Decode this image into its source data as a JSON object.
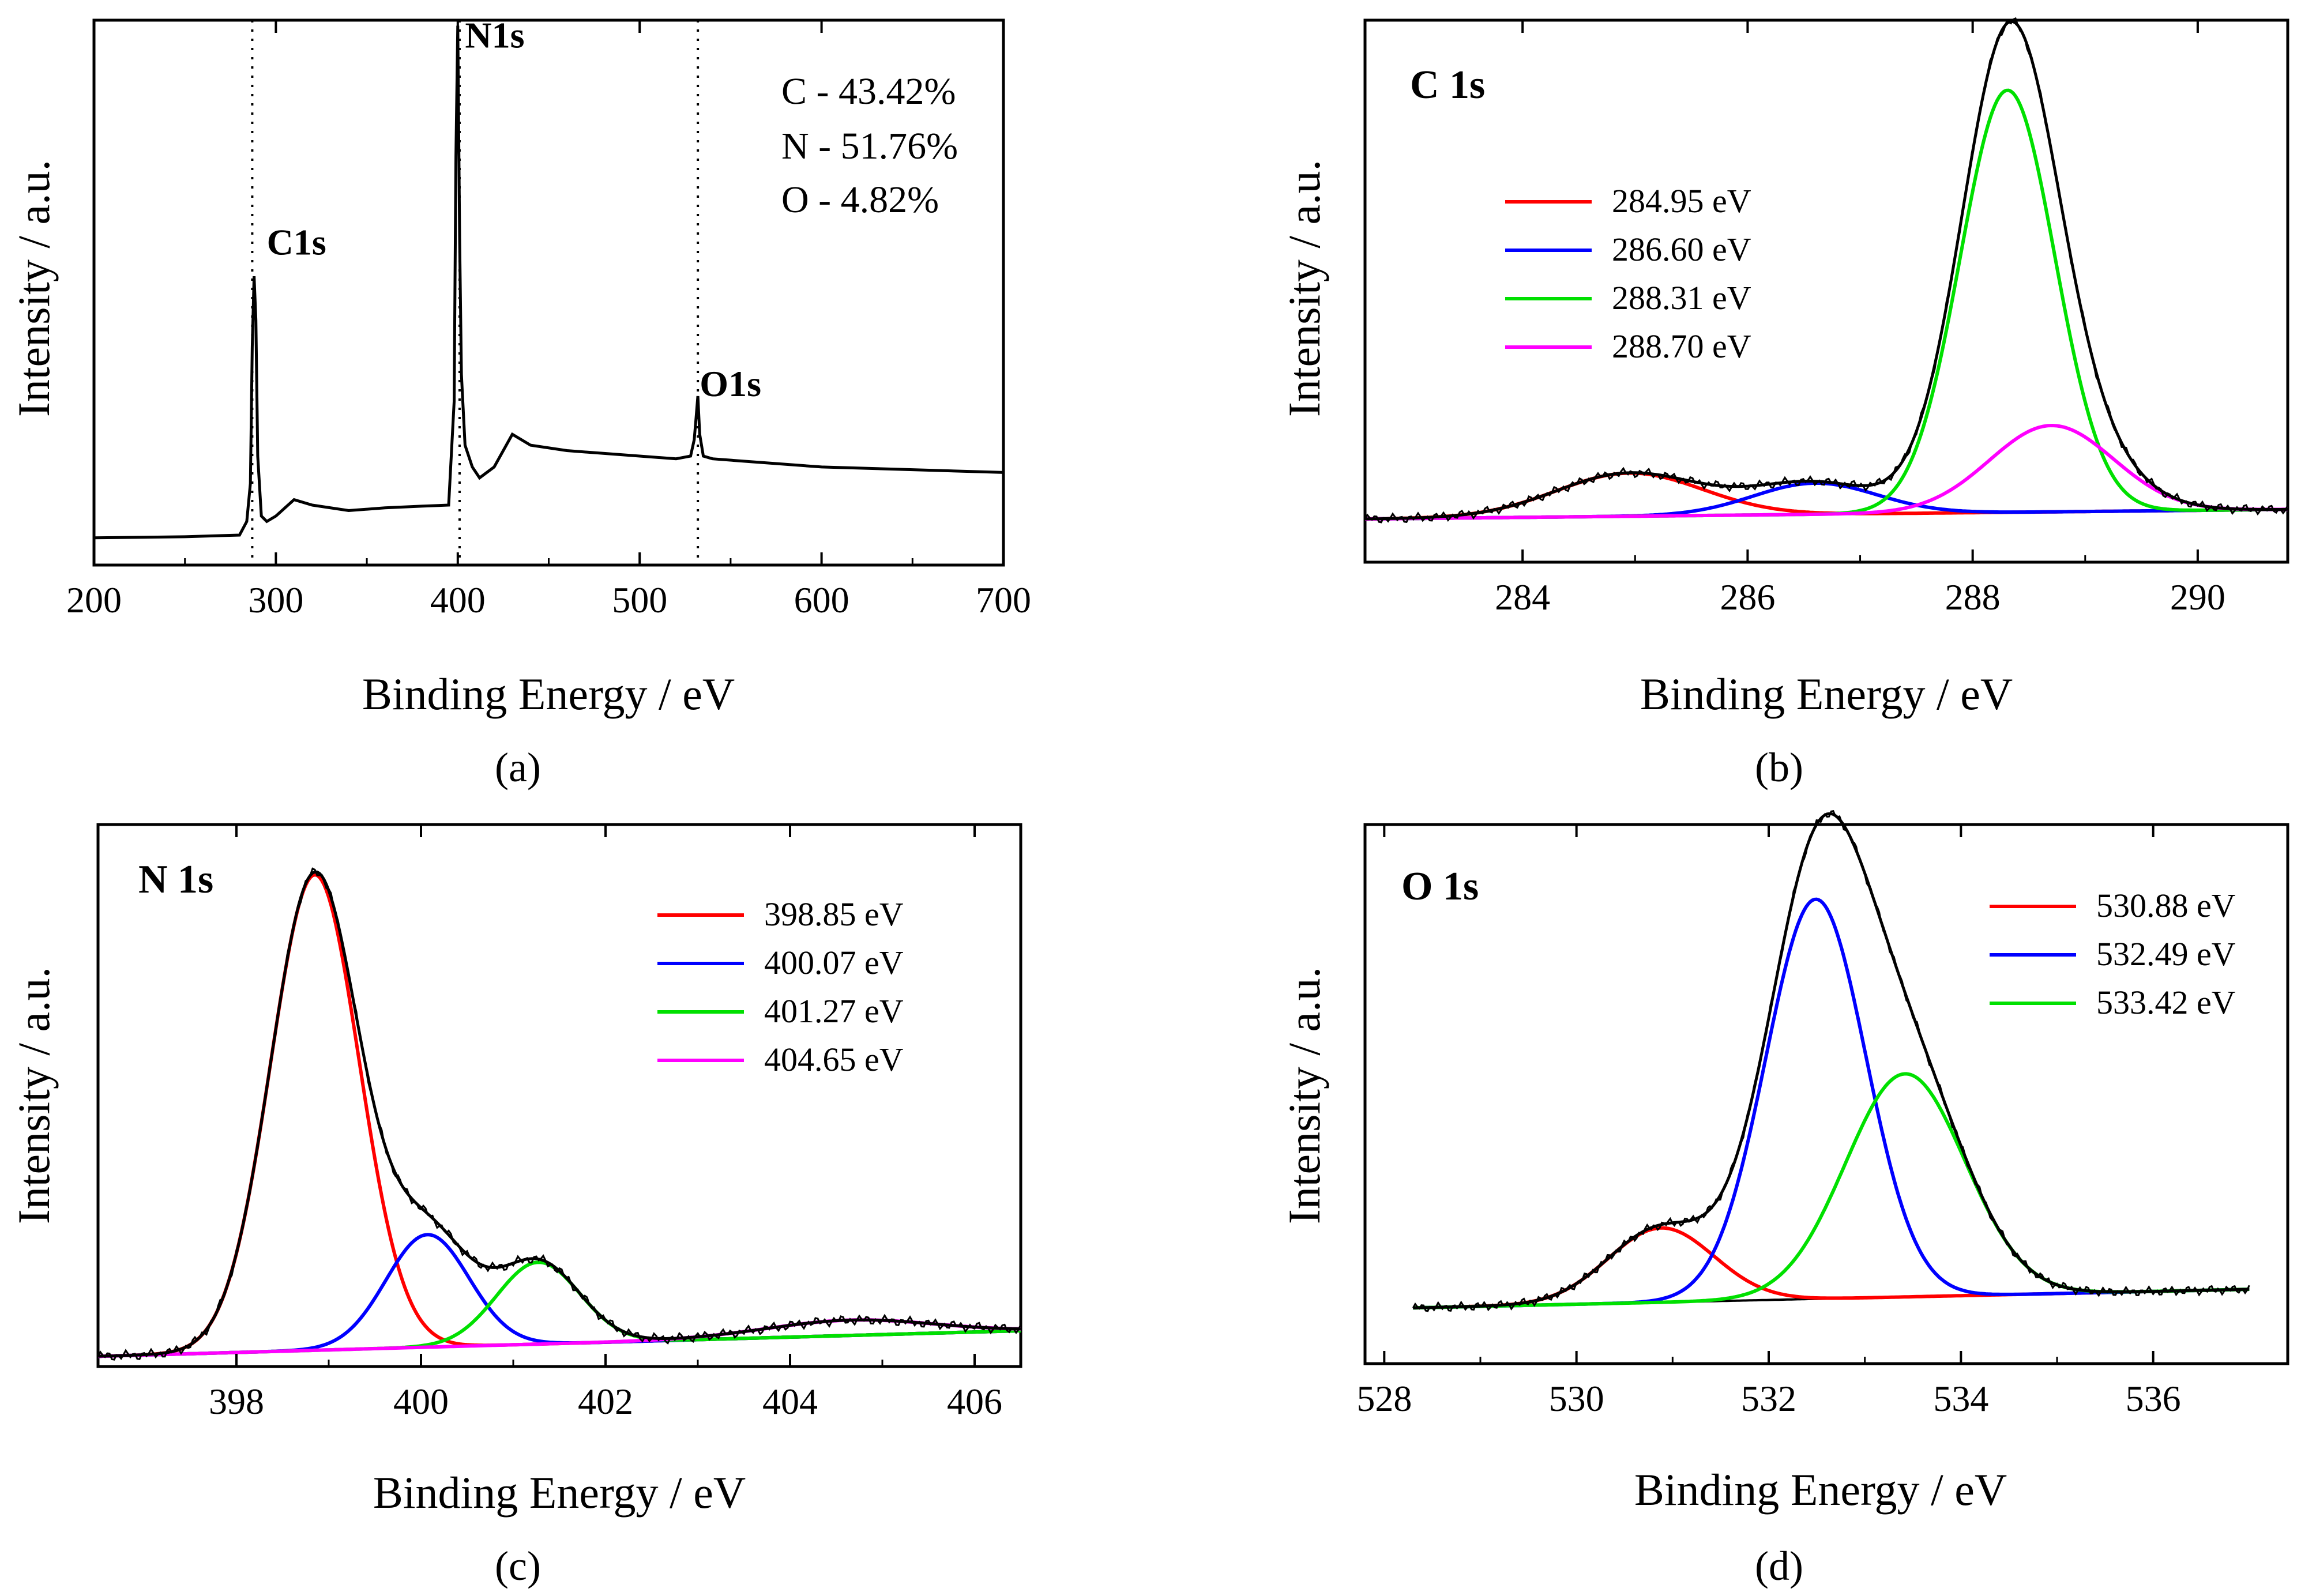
{
  "figure": {
    "panel_a_caption": "(a)",
    "panel_b_caption": "(b)",
    "panel_c_caption": "(c)",
    "panel_d_caption": "(d)"
  },
  "chart_data": [
    {
      "id": "a",
      "type": "line",
      "caption_letter": "a",
      "title": "",
      "xlabel": "Binding Energy / eV",
      "ylabel": "Intensity / a.u.",
      "xlim": [
        200,
        700
      ],
      "ylim": [
        0,
        100
      ],
      "xticks": [
        200,
        300,
        400,
        500,
        600,
        700
      ],
      "vlines": [
        287,
        401,
        532
      ],
      "peak_labels": [
        {
          "text": "C1s",
          "x": 295,
          "y": 57
        },
        {
          "text": "N1s",
          "x": 404,
          "y": 95
        },
        {
          "text": "O1s",
          "x": 533,
          "y": 31
        }
      ],
      "composition": [
        "C - 43.42%",
        "N - 51.76%",
        "O - 4.82%"
      ],
      "series": [
        {
          "name": "survey",
          "color": "#000000",
          "x": [
            200,
            250,
            280,
            284,
            286,
            287,
            288,
            289,
            290,
            292,
            295,
            300,
            310,
            320,
            340,
            360,
            380,
            395,
            398,
            399,
            400,
            401,
            402,
            404,
            408,
            412,
            420,
            430,
            440,
            460,
            480,
            500,
            520,
            528,
            530,
            531,
            532,
            533,
            535,
            540,
            560,
            600,
            650,
            700
          ],
          "y": [
            5,
            5.2,
            5.5,
            8,
            15,
            40,
            53,
            45,
            20,
            9,
            8,
            9,
            12,
            11,
            10,
            10.5,
            10.8,
            11,
            30,
            75,
            99,
            60,
            35,
            22,
            18,
            16,
            18,
            24,
            22,
            21,
            20.5,
            20,
            19.5,
            20,
            23,
            27,
            31,
            24,
            20,
            19.5,
            19,
            18,
            17.5,
            17
          ]
        }
      ]
    },
    {
      "id": "b",
      "type": "line",
      "caption_letter": "b",
      "title": "C 1s",
      "xlabel": "Binding Energy / eV",
      "ylabel": "Intensity / a.u.",
      "xlim": [
        282.6,
        290.8
      ],
      "ylim": [
        -0.09,
        1.04
      ],
      "xticks": [
        284,
        286,
        288,
        290
      ],
      "legend": [
        {
          "label": "284.95 eV",
          "color": "#ff0000"
        },
        {
          "label": "286.60 eV",
          "color": "#0000ff"
        },
        {
          "label": "288.31 eV",
          "color": "#00e000"
        },
        {
          "label": "288.70 eV",
          "color": "#ff00ff"
        }
      ],
      "peaks": [
        {
          "center": 284.95,
          "height": 0.09,
          "sigma": 0.65,
          "color": "#ff0000"
        },
        {
          "center": 286.6,
          "height": 0.065,
          "sigma": 0.55,
          "color": "#0000ff"
        },
        {
          "center": 288.31,
          "height": 0.88,
          "sigma": 0.42,
          "color": "#00e000"
        },
        {
          "center": 288.7,
          "height": 0.18,
          "sigma": 0.55,
          "color": "#ff00ff"
        }
      ],
      "baseline": {
        "x": [
          282.6,
          290.8
        ],
        "y": [
          0.0,
          0.02
        ]
      }
    },
    {
      "id": "c",
      "type": "line",
      "caption_letter": "c",
      "title": "N 1s",
      "xlabel": "Binding Energy / eV",
      "ylabel": "Intensity / a.u.",
      "xlim": [
        396.5,
        406.5
      ],
      "ylim": [
        -0.02,
        1.04
      ],
      "xticks": [
        398,
        400,
        402,
        404,
        406
      ],
      "legend": [
        {
          "label": "398.85 eV",
          "color": "#ff0000"
        },
        {
          "label": "400.07 eV",
          "color": "#0000ff"
        },
        {
          "label": "401.27 eV",
          "color": "#00e000"
        },
        {
          "label": "404.65 eV",
          "color": "#ff00ff"
        }
      ],
      "peaks": [
        {
          "center": 398.85,
          "height": 0.93,
          "sigma": 0.48,
          "color": "#ff0000"
        },
        {
          "center": 400.07,
          "height": 0.22,
          "sigma": 0.45,
          "color": "#0000ff"
        },
        {
          "center": 401.27,
          "height": 0.16,
          "sigma": 0.45,
          "color": "#00e000"
        },
        {
          "center": 404.65,
          "height": 0.03,
          "sigma": 0.9,
          "color": "#ff00ff"
        }
      ],
      "baseline": {
        "x": [
          396.5,
          406.5
        ],
        "y": [
          0.0,
          0.05
        ]
      }
    },
    {
      "id": "d",
      "type": "line",
      "caption_letter": "d",
      "title": "O 1s",
      "xlabel": "Binding Energy / eV",
      "ylabel": "Intensity / a.u.",
      "xlim": [
        527.8,
        537.4
      ],
      "ylim": [
        -0.12,
        1.04
      ],
      "xticks": [
        528,
        530,
        532,
        534,
        536
      ],
      "legend": [
        {
          "label": "530.88 eV",
          "color": "#ff0000"
        },
        {
          "label": "532.49 eV",
          "color": "#0000ff"
        },
        {
          "label": "533.42 eV",
          "color": "#00e000"
        }
      ],
      "peaks": [
        {
          "center": 530.88,
          "height": 0.16,
          "sigma": 0.55,
          "color": "#ff0000"
        },
        {
          "center": 532.49,
          "height": 0.86,
          "sigma": 0.52,
          "color": "#0000ff"
        },
        {
          "center": 533.42,
          "height": 0.48,
          "sigma": 0.62,
          "color": "#00e000"
        }
      ],
      "baseline": {
        "x": [
          528.3,
          537.0
        ],
        "y": [
          0.0,
          0.04
        ]
      }
    }
  ]
}
